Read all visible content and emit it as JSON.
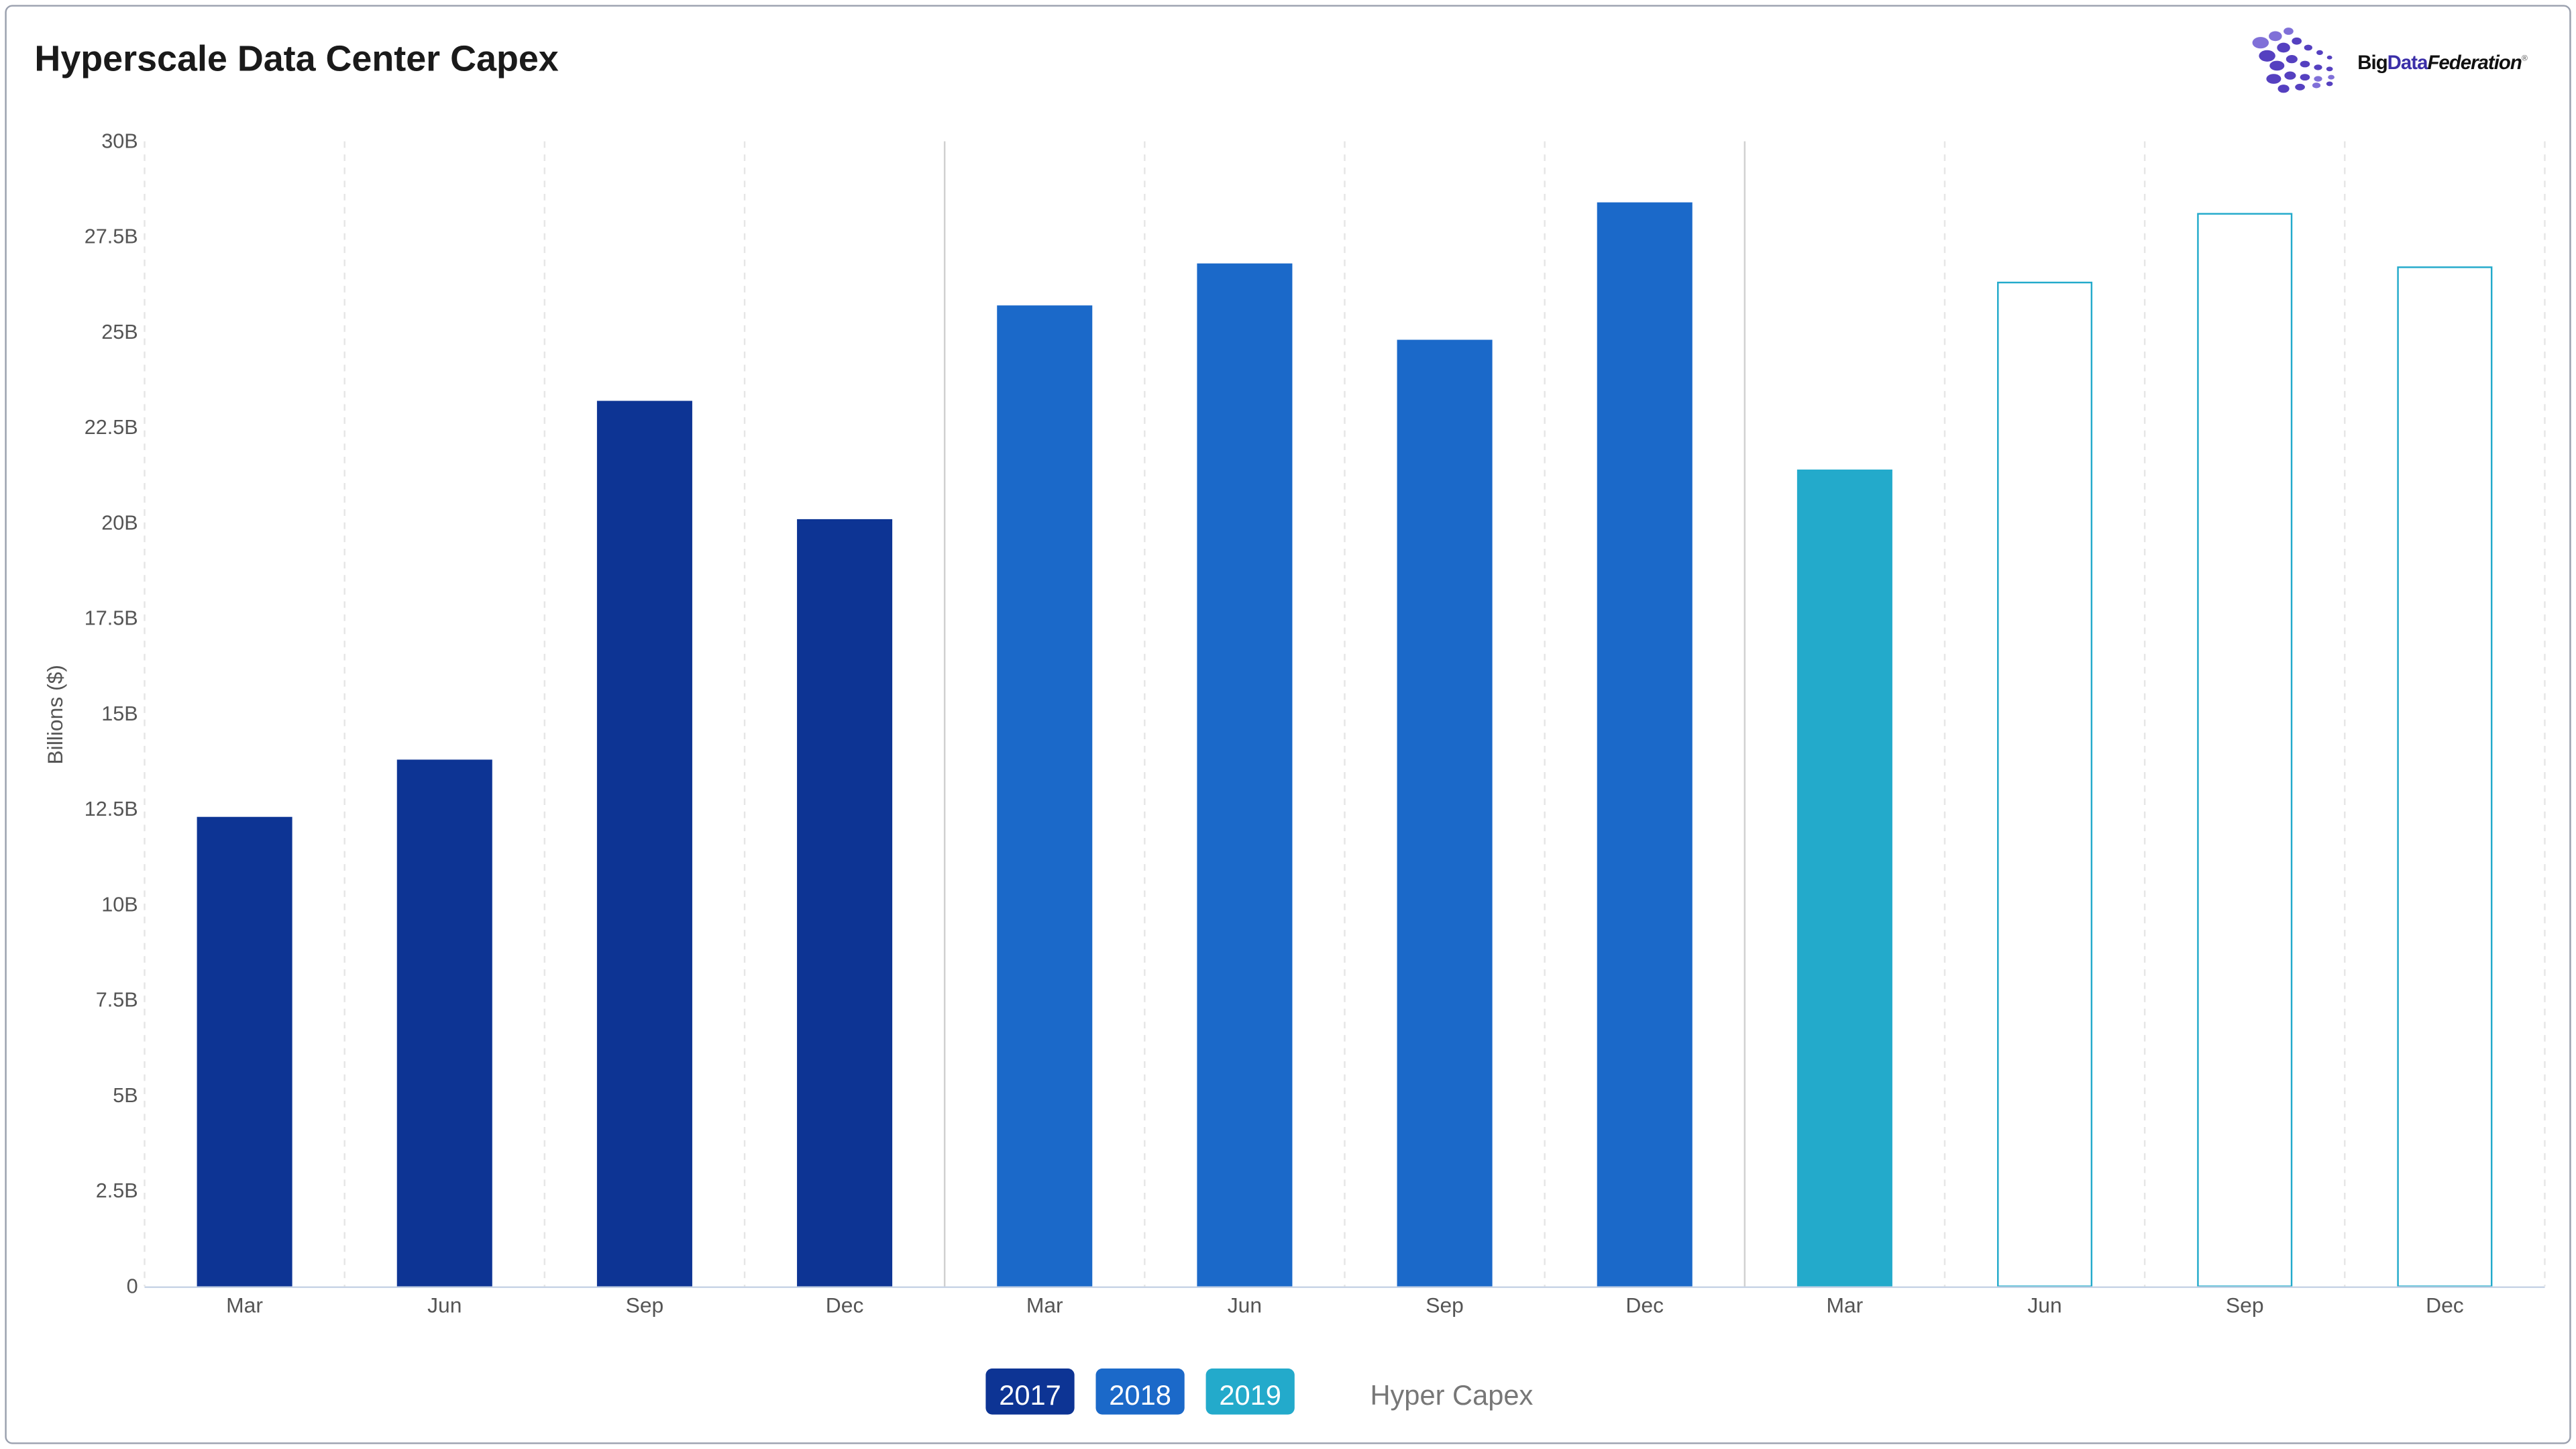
{
  "header": {
    "title": "Hyperscale Data Center Capex"
  },
  "logo": {
    "text_part1": "Big",
    "text_part2": "Data",
    "text_part3": "Federation",
    "registered": "®"
  },
  "legend": {
    "items": [
      {
        "label": "2017",
        "color": "#0d3494"
      },
      {
        "label": "2018",
        "color": "#1b69c9"
      },
      {
        "label": "2019",
        "color": "#23aacb"
      }
    ],
    "series_name": "Hyper Capex"
  },
  "chart_data": {
    "type": "bar",
    "title": "Hyperscale Data Center Capex",
    "xlabel": "",
    "ylabel": "Billions ($)",
    "ylim": [
      0,
      30
    ],
    "yticks": [
      "0",
      "2.5B",
      "5B",
      "7.5B",
      "10B",
      "12.5B",
      "15B",
      "17.5B",
      "20B",
      "22.5B",
      "25B",
      "27.5B",
      "30B"
    ],
    "categories": [
      "Mar",
      "Jun",
      "Sep",
      "Dec",
      "Mar",
      "Jun",
      "Sep",
      "Dec",
      "Mar",
      "Jun",
      "Sep",
      "Dec"
    ],
    "years": [
      "2017",
      "2017",
      "2017",
      "2017",
      "2018",
      "2018",
      "2018",
      "2018",
      "2019",
      "2019",
      "2019",
      "2019"
    ],
    "values": [
      12.3,
      13.8,
      23.2,
      20.1,
      25.7,
      26.8,
      24.8,
      28.4,
      21.4,
      26.3,
      28.1,
      26.7
    ],
    "projected": [
      false,
      false,
      false,
      false,
      false,
      false,
      false,
      false,
      false,
      true,
      true,
      true
    ],
    "grid": "vertical dashed",
    "legend_position": "bottom-center"
  }
}
